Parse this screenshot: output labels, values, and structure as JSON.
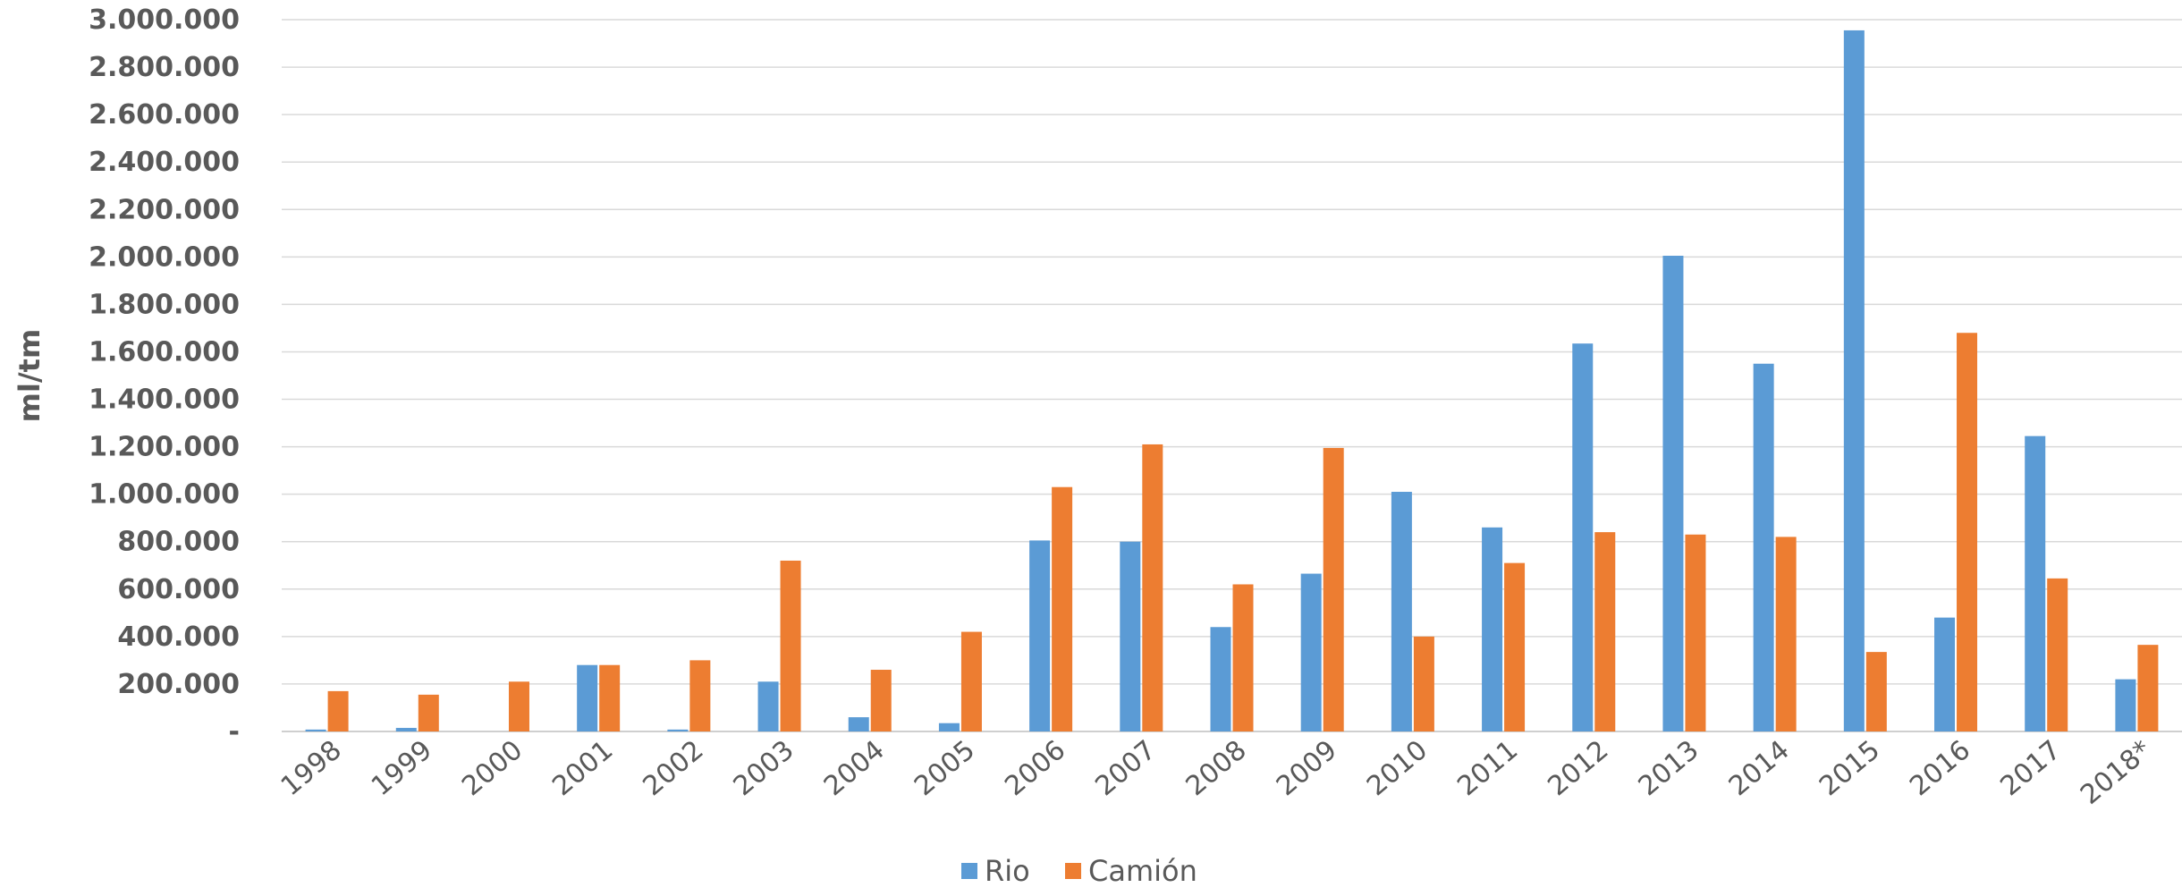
{
  "chart_data": {
    "type": "bar",
    "ylabel": "ml/tm",
    "ylim": [
      0,
      3000000
    ],
    "y_ticks": [
      "-",
      "200.000",
      "400.000",
      "600.000",
      "800.000",
      "1.000.000",
      "1.200.000",
      "1.400.000",
      "1.600.000",
      "1.800.000",
      "2.000.000",
      "2.200.000",
      "2.400.000",
      "2.600.000",
      "2.800.000",
      "3.000.000"
    ],
    "categories": [
      "1998",
      "1999",
      "2000",
      "2001",
      "2002",
      "2003",
      "2004",
      "2005",
      "2006",
      "2007",
      "2008",
      "2009",
      "2010",
      "2011",
      "2012",
      "2013",
      "2014",
      "2015",
      "2016",
      "2017",
      "2018*"
    ],
    "series": [
      {
        "name": "Rio",
        "color": "#5B9BD5",
        "values": [
          8000,
          15000,
          0,
          280000,
          8000,
          210000,
          60000,
          35000,
          805000,
          800000,
          440000,
          665000,
          1010000,
          860000,
          1635000,
          2005000,
          1550000,
          2955000,
          480000,
          1245000,
          220000
        ]
      },
      {
        "name": "Camión",
        "color": "#ED7D31",
        "values": [
          170000,
          155000,
          210000,
          280000,
          300000,
          720000,
          260000,
          420000,
          1030000,
          1210000,
          620000,
          1195000,
          400000,
          710000,
          840000,
          830000,
          820000,
          335000,
          1680000,
          645000,
          365000
        ]
      }
    ],
    "grid": true,
    "legend_position": "bottom"
  }
}
